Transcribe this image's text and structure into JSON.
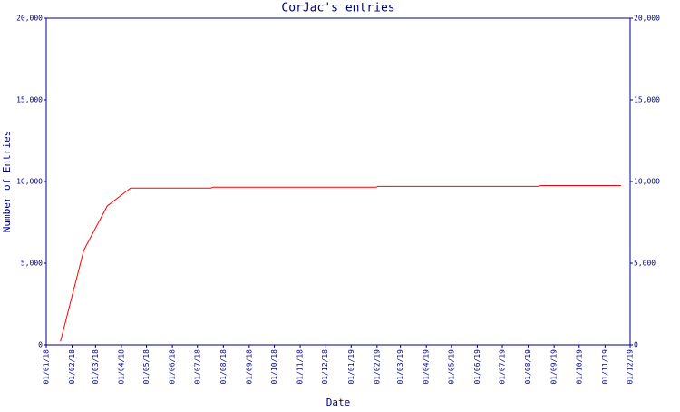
{
  "chart_data": {
    "type": "line",
    "title": "CorJac's entries",
    "x_label": "Date",
    "y_label": "Number of Entries",
    "x": [
      "2018-01-18",
      "2018-02-15",
      "2018-03-15",
      "2018-04-12",
      "2018-07-17",
      "2018-07-20",
      "2019-01-31",
      "2019-02-02",
      "2019-08-13",
      "2019-08-16",
      "2019-11-20"
    ],
    "series": [
      {
        "name": "Entries",
        "color": "#ff0000",
        "values": [
          200,
          5800,
          8500,
          9600,
          9600,
          9650,
          9650,
          9700,
          9700,
          9750,
          9750
        ]
      }
    ],
    "xlim": [
      "2018-01-01",
      "2019-12-01"
    ],
    "xticks": [
      {
        "value": "2018-01-01",
        "label": "01/01/18"
      },
      {
        "value": "2018-02-01",
        "label": "01/02/18"
      },
      {
        "value": "2018-03-01",
        "label": "01/03/18"
      },
      {
        "value": "2018-04-01",
        "label": "01/04/18"
      },
      {
        "value": "2018-05-01",
        "label": "01/05/18"
      },
      {
        "value": "2018-06-01",
        "label": "01/06/18"
      },
      {
        "value": "2018-07-01",
        "label": "01/07/18"
      },
      {
        "value": "2018-08-01",
        "label": "01/08/18"
      },
      {
        "value": "2018-09-01",
        "label": "01/09/18"
      },
      {
        "value": "2018-10-01",
        "label": "01/10/18"
      },
      {
        "value": "2018-11-01",
        "label": "01/11/18"
      },
      {
        "value": "2018-12-01",
        "label": "01/12/18"
      },
      {
        "value": "2019-01-01",
        "label": "01/01/19"
      },
      {
        "value": "2019-02-01",
        "label": "01/02/19"
      },
      {
        "value": "2019-03-01",
        "label": "01/03/19"
      },
      {
        "value": "2019-04-01",
        "label": "01/04/19"
      },
      {
        "value": "2019-05-01",
        "label": "01/05/19"
      },
      {
        "value": "2019-06-01",
        "label": "01/06/19"
      },
      {
        "value": "2019-07-01",
        "label": "01/07/19"
      },
      {
        "value": "2019-08-01",
        "label": "01/08/19"
      },
      {
        "value": "2019-09-01",
        "label": "01/09/19"
      },
      {
        "value": "2019-10-01",
        "label": "01/10/19"
      },
      {
        "value": "2019-11-01",
        "label": "01/11/19"
      },
      {
        "value": "2019-12-01",
        "label": "01/12/19"
      }
    ],
    "ylim": [
      0,
      20000
    ],
    "yticks": [
      0,
      {
        "value": 5000,
        "label": "5,000"
      },
      {
        "value": 10000,
        "label": "10,000"
      },
      {
        "value": 15000,
        "label": "15,000"
      },
      {
        "value": 20000,
        "label": "20,000"
      }
    ],
    "grid": false
  }
}
